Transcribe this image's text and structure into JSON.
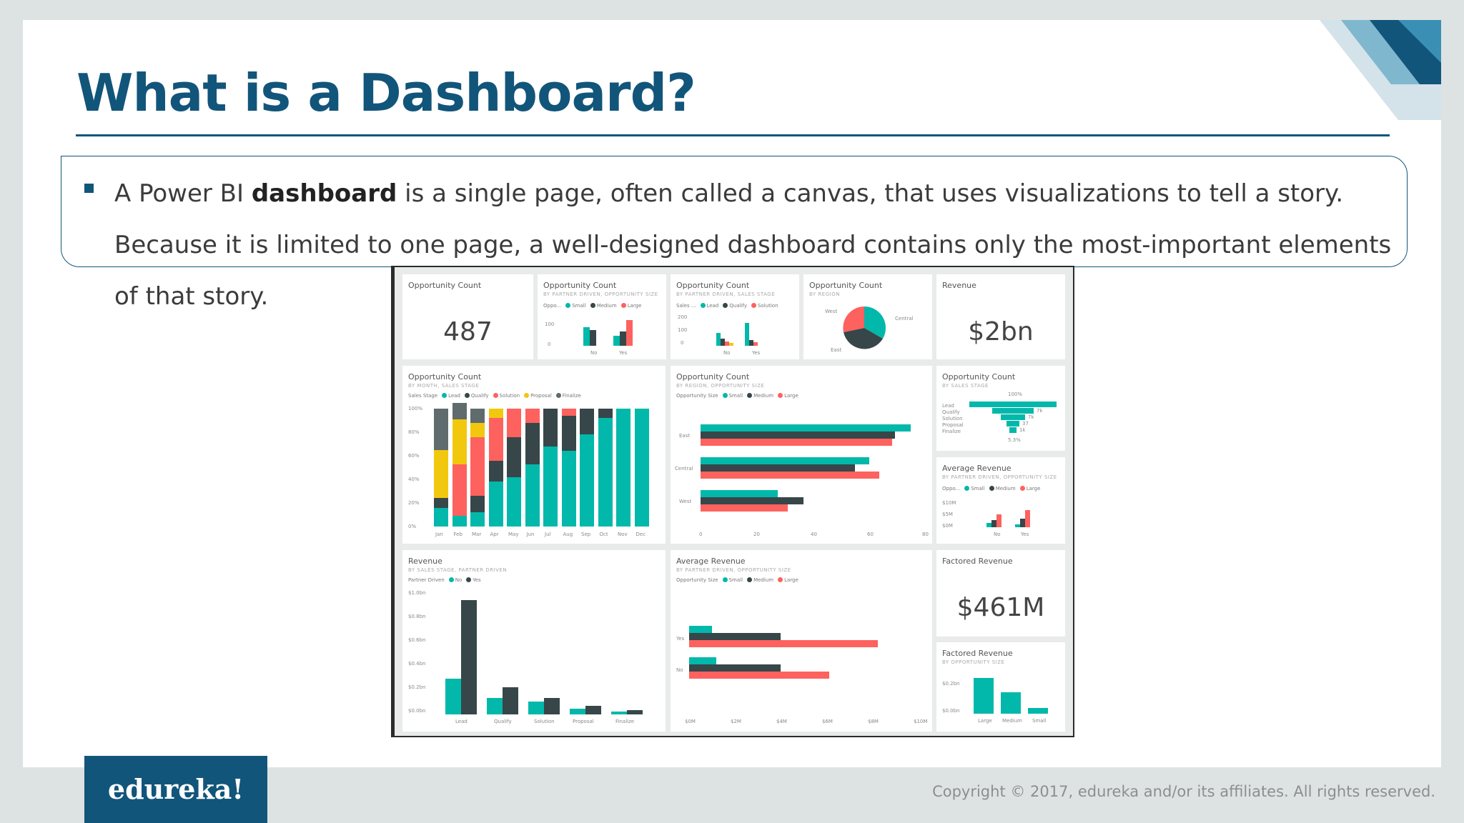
{
  "slide": {
    "title": "What is a Dashboard?",
    "paragraph": {
      "before_bold": "A Power BI ",
      "bold": "dashboard",
      "after_bold": " is a single page, often called a canvas, that uses visualizations to tell a story. Because it is limited to one page, a well-designed dashboard contains only the most-important elements of that story."
    }
  },
  "footer": {
    "logo": "edureka!",
    "copyright": "Copyright © 2017, edureka and/or its affiliates. All rights reserved."
  },
  "colors": {
    "brand_blue": "#12557a",
    "teal": "#01b8aa",
    "dark": "#374649",
    "red": "#fd625e",
    "yellow": "#f2c80f",
    "gray": "#5f6b6d"
  },
  "dashboard": {
    "tiles": [
      {
        "title": "Opportunity Count",
        "value": "487"
      },
      {
        "title": "Opportunity Count",
        "subtitle": "BY PARTNER DRIVEN, OPPORTUNITY SIZE",
        "legend_label": "Oppo...",
        "legend": [
          "Small",
          "Medium",
          "Large"
        ],
        "y_ticks": [
          "100",
          "0"
        ],
        "x": [
          "No",
          "Yes"
        ]
      },
      {
        "title": "Opportunity Count",
        "subtitle": "BY PARTNER DRIVEN, SALES STAGE",
        "legend_label": "Sales ...",
        "legend": [
          "Lead",
          "Qualify",
          "Solution"
        ],
        "y_ticks": [
          "200",
          "100",
          "0"
        ],
        "x": [
          "No",
          "Yes"
        ]
      },
      {
        "title": "Opportunity Count",
        "subtitle": "BY REGION",
        "labels": [
          "West",
          "Central",
          "East"
        ]
      },
      {
        "title": "Revenue",
        "value": "$2bn"
      },
      {
        "title": "Opportunity Count",
        "subtitle": "BY MONTH, SALES STAGE",
        "legend_label": "Sales Stage",
        "legend": [
          "Lead",
          "Qualify",
          "Solution",
          "Proposal",
          "Finalize"
        ],
        "y_ticks": [
          "100%",
          "80%",
          "60%",
          "40%",
          "20%",
          "0%"
        ],
        "x": [
          "Jan",
          "Feb",
          "Mar",
          "Apr",
          "May",
          "Jun",
          "Jul",
          "Aug",
          "Sep",
          "Oct",
          "Nov",
          "Dec"
        ]
      },
      {
        "title": "Opportunity Count",
        "subtitle": "BY REGION, OPPORTUNITY SIZE",
        "legend_label": "Opportunity Size",
        "legend": [
          "Small",
          "Medium",
          "Large"
        ],
        "categories": [
          "East",
          "Central",
          "West"
        ],
        "x_ticks": [
          "0",
          "20",
          "40",
          "60",
          "80"
        ]
      },
      {
        "title": "Opportunity Count",
        "subtitle": "BY SALES STAGE",
        "labels": [
          "Lead",
          "Qualify",
          "Solution",
          "Proposal",
          "Finalize"
        ],
        "values": [
          "100%",
          "7k",
          "7k",
          "37",
          "1k",
          "5.3%"
        ]
      },
      {
        "title": "Average Revenue",
        "subtitle": "BY PARTNER DRIVEN, OPPORTUNITY SIZE",
        "legend_label": "Oppo...",
        "legend": [
          "Small",
          "Medium",
          "Large"
        ],
        "y_ticks": [
          "$10M",
          "$5M",
          "$0M"
        ],
        "x": [
          "No",
          "Yes"
        ]
      },
      {
        "title": "Revenue",
        "subtitle": "BY SALES STAGE, PARTNER DRIVEN",
        "legend_label": "Partner Driven",
        "legend": [
          "No",
          "Yes"
        ],
        "y_ticks": [
          "$1.0bn",
          "$0.8bn",
          "$0.6bn",
          "$0.4bn",
          "$0.2bn",
          "$0.0bn"
        ],
        "x": [
          "Lead",
          "Qualify",
          "Solution",
          "Proposal",
          "Finalize"
        ]
      },
      {
        "title": "Average Revenue",
        "subtitle": "BY PARTNER DRIVEN, OPPORTUNITY SIZE",
        "legend_label": "Opportunity Size",
        "legend": [
          "Small",
          "Medium",
          "Large"
        ],
        "categories": [
          "Yes",
          "No"
        ],
        "x_ticks": [
          "$0M",
          "$2M",
          "$4M",
          "$6M",
          "$8M",
          "$10M"
        ]
      },
      {
        "title": "Factored Revenue",
        "value": "$461M"
      },
      {
        "title": "Factored Revenue",
        "subtitle": "BY OPPORTUNITY SIZE",
        "y_ticks": [
          "$0.2bn",
          "$0.0bn"
        ],
        "x": [
          "Large",
          "Medium",
          "Small"
        ]
      }
    ]
  }
}
